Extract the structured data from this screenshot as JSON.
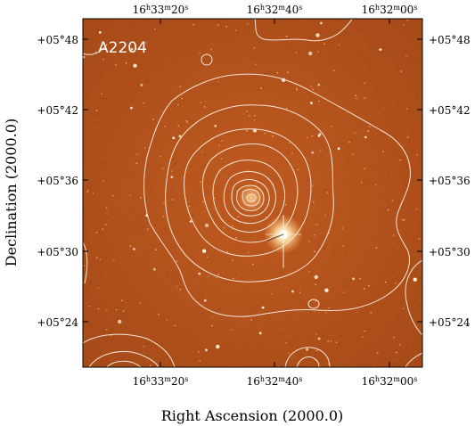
{
  "figure": {
    "cluster_label": "A2204",
    "xlabel": "Right Ascension (2000.0)",
    "ylabel": "Declination (2000.0)",
    "colors": {
      "background": "#b5521b",
      "background_dark": "#8d3c12",
      "contour": "#f4e6d8",
      "frame": "#000000",
      "label": "#ffffff"
    },
    "ra_ticks": [
      {
        "h": "16",
        "m": "33",
        "s": "20"
      },
      {
        "h": "16",
        "m": "32",
        "s": "40"
      },
      {
        "h": "16",
        "m": "32",
        "s": "00"
      }
    ],
    "dec_ticks": [
      "+05°48",
      "+05°42",
      "+05°36",
      "+05°30",
      "+05°24"
    ],
    "contour_levels": 10,
    "bright_star": "saturated foreground star south-east of cluster core"
  }
}
